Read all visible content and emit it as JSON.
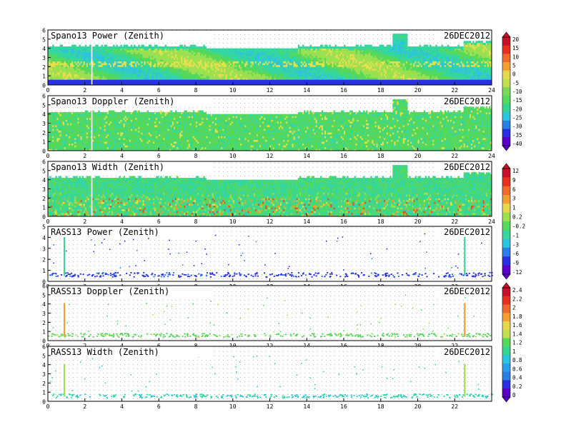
{
  "date_label": "26DEC2012",
  "x_ticks": [
    "0",
    "2",
    "4",
    "6",
    "8",
    "10",
    "12",
    "14",
    "16",
    "18",
    "20",
    "22",
    "24"
  ],
  "x_ticks_short": [
    "0",
    "2",
    "4",
    "6",
    "8",
    "10",
    "12",
    "14",
    "16",
    "18",
    "20",
    "22"
  ],
  "y_ticks": [
    "0",
    "1",
    "2",
    "3",
    "4",
    "5",
    "6"
  ],
  "colorbars": [
    {
      "labels": [
        "20",
        "15",
        "10",
        "5",
        "0",
        "-5",
        "-10",
        "-15",
        "-20",
        "-25",
        "-30",
        "-35",
        "-40"
      ]
    },
    {
      "labels": [
        "12",
        "9",
        "6",
        "3",
        "1",
        "0.2",
        "-0.2",
        "-1",
        "-3",
        "-6",
        "-9",
        "-12"
      ]
    },
    {
      "labels": [
        "2.4",
        "2.2",
        "2",
        "1.8",
        "1.6",
        "1.4",
        "1.2",
        "1",
        "0.8",
        "0.6",
        "0.4",
        "0.2",
        "0"
      ]
    }
  ],
  "panels": [
    {
      "title": "Spano13 Power (Zenith)"
    },
    {
      "title": "Spano13 Doppler (Zenith)"
    },
    {
      "title": "Spano13 Width (Zenith)"
    },
    {
      "title": "RASS13 Power (Zenith)"
    },
    {
      "title": "RASS13 Doppler (Zenith)"
    },
    {
      "title": "RASS13 Width (Zenith)"
    }
  ],
  "chart_data": [
    {
      "type": "heatmap",
      "title": "Spano13 Power (Zenith)",
      "xlim": [
        0,
        24
      ],
      "ylim": [
        0,
        6
      ],
      "grid": true,
      "colorbar": "shared, right of panels 1-2"
    },
    {
      "type": "heatmap",
      "title": "Spano13 Doppler (Zenith)",
      "xlim": [
        0,
        24
      ],
      "ylim": [
        0,
        6
      ],
      "grid": true,
      "colorbar": "shared, right of panels 1-2"
    },
    {
      "type": "heatmap",
      "title": "Spano13 Width (Zenith)",
      "xlim": [
        0,
        24
      ],
      "ylim": [
        0,
        6
      ],
      "grid": true,
      "colorbar": "shared, right of panels 3-4"
    },
    {
      "type": "scatter",
      "title": "RASS13 Power (Zenith)",
      "xlim": [
        0,
        24
      ],
      "ylim": [
        0,
        5
      ],
      "grid": true,
      "colorbar": "shared, right of panels 3-4"
    },
    {
      "type": "scatter",
      "title": "RASS13 Doppler (Zenith)",
      "xlim": [
        0,
        24
      ],
      "ylim": [
        0,
        6
      ],
      "grid": true,
      "colorbar": "shared, right of panels 5-6"
    },
    {
      "type": "scatter",
      "title": "RASS13 Width (Zenith)",
      "xlim": [
        0,
        24
      ],
      "ylim": [
        0,
        6
      ],
      "grid": true,
      "colorbar": "shared, right of panels 5-6"
    }
  ]
}
